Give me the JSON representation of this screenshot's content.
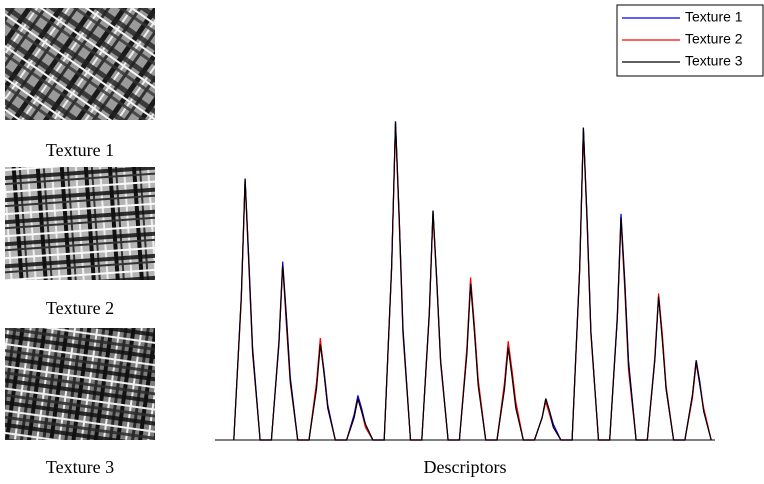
{
  "images": [
    {
      "caption": "Texture 1"
    },
    {
      "caption": "Texture 2"
    },
    {
      "caption": "Texture 3"
    }
  ],
  "chart_data": {
    "type": "line",
    "xlabel": "Descriptors",
    "x": [
      0,
      2,
      3,
      4,
      5,
      7,
      10,
      12,
      13,
      14,
      15,
      17,
      20,
      22,
      23,
      24,
      25,
      27,
      30,
      32,
      33,
      34,
      35,
      37,
      40,
      42,
      43,
      44,
      45,
      47,
      50,
      52,
      53,
      54,
      55,
      57,
      60,
      62,
      63,
      64,
      65,
      67,
      70,
      72,
      73,
      74,
      75,
      77,
      80,
      82,
      83,
      84,
      85,
      87,
      90,
      92,
      93,
      94,
      95,
      97,
      100,
      102,
      103,
      104,
      105,
      107,
      110,
      112,
      113,
      114,
      115,
      117,
      120,
      122,
      123,
      124,
      125,
      127
    ],
    "xlim": [
      -5,
      128
    ],
    "ylim": [
      0,
      1.02
    ],
    "legend": "upper-right",
    "series": [
      {
        "name": "Texture 1",
        "color": "#0000ff",
        "values": [
          0,
          0.45,
          0.82,
          0.57,
          0.29,
          0,
          0,
          0.31,
          0.56,
          0.39,
          0.2,
          0,
          0,
          0.17,
          0.31,
          0.22,
          0.11,
          0,
          0,
          0.08,
          0.14,
          0.1,
          0.05,
          0,
          0,
          0.55,
          1.0,
          0.7,
          0.35,
          0,
          0,
          0.4,
          0.72,
          0.5,
          0.25,
          0,
          0,
          0.28,
          0.5,
          0.35,
          0.18,
          0,
          0,
          0.17,
          0.3,
          0.21,
          0.11,
          0,
          0,
          0.07,
          0.13,
          0.09,
          0.05,
          0,
          0,
          0.54,
          0.98,
          0.69,
          0.34,
          0,
          0,
          0.39,
          0.71,
          0.5,
          0.25,
          0,
          0,
          0.25,
          0.45,
          0.32,
          0.16,
          0,
          0,
          0.14,
          0.25,
          0.18,
          0.09,
          0
        ]
      },
      {
        "name": "Texture 2",
        "color": "#ff0000",
        "values": [
          0,
          0.44,
          0.81,
          0.55,
          0.27,
          0,
          0,
          0.3,
          0.55,
          0.36,
          0.18,
          0,
          0,
          0.18,
          0.32,
          0.21,
          0.1,
          0,
          0,
          0.07,
          0.13,
          0.09,
          0.04,
          0,
          0,
          0.54,
          0.99,
          0.68,
          0.33,
          0,
          0,
          0.39,
          0.71,
          0.49,
          0.24,
          0,
          0,
          0.29,
          0.51,
          0.36,
          0.19,
          0,
          0,
          0.18,
          0.31,
          0.22,
          0.12,
          0,
          0,
          0.07,
          0.12,
          0.08,
          0.04,
          0,
          0,
          0.53,
          0.97,
          0.67,
          0.33,
          0,
          0,
          0.38,
          0.69,
          0.47,
          0.22,
          0,
          0,
          0.26,
          0.46,
          0.33,
          0.17,
          0,
          0,
          0.13,
          0.24,
          0.17,
          0.1,
          0
        ]
      },
      {
        "name": "Texture 3",
        "color": "#000000",
        "values": [
          0,
          0.45,
          0.82,
          0.56,
          0.28,
          0,
          0,
          0.3,
          0.55,
          0.38,
          0.19,
          0,
          0,
          0.16,
          0.3,
          0.21,
          0.1,
          0,
          0,
          0.07,
          0.13,
          0.09,
          0.05,
          0,
          0,
          0.55,
          1.0,
          0.7,
          0.34,
          0,
          0,
          0.4,
          0.72,
          0.5,
          0.25,
          0,
          0,
          0.27,
          0.49,
          0.34,
          0.17,
          0,
          0,
          0.16,
          0.29,
          0.2,
          0.1,
          0,
          0,
          0.07,
          0.13,
          0.09,
          0.04,
          0,
          0,
          0.54,
          0.98,
          0.68,
          0.34,
          0,
          0,
          0.38,
          0.7,
          0.49,
          0.24,
          0,
          0,
          0.25,
          0.45,
          0.31,
          0.16,
          0,
          0,
          0.14,
          0.25,
          0.17,
          0.09,
          0
        ]
      }
    ]
  }
}
